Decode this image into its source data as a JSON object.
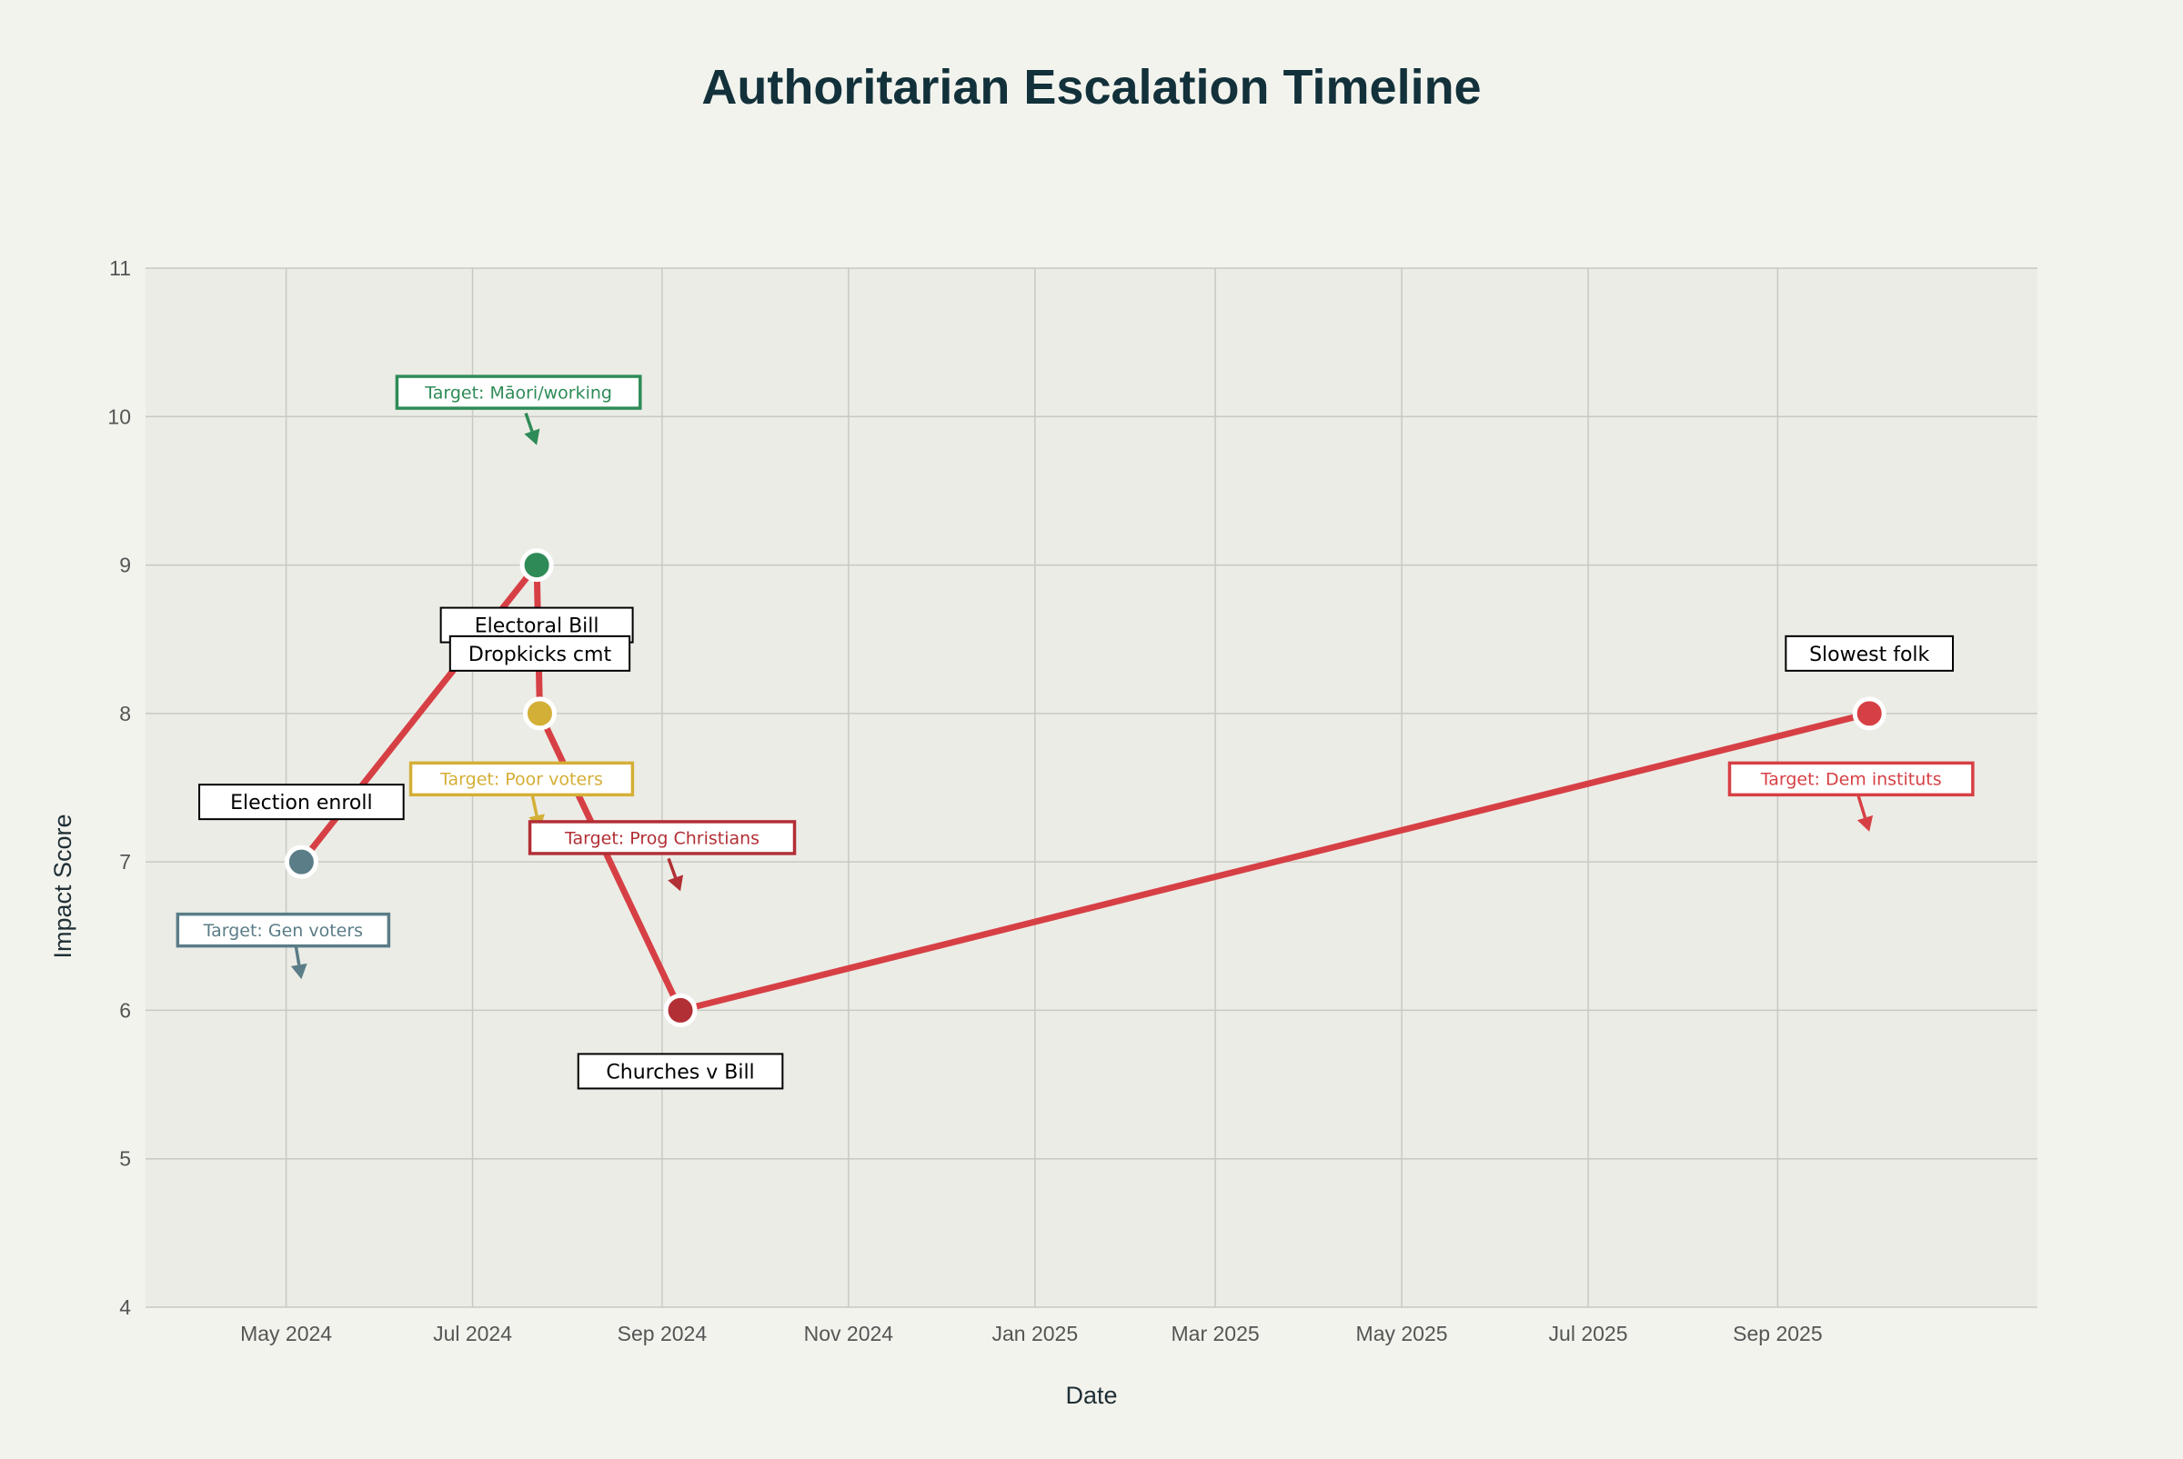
{
  "chart_data": {
    "type": "line",
    "title": "Authoritarian Escalation Timeline",
    "xlabel": "Date",
    "ylabel": "Impact Score",
    "xlim": [
      "2024-03-16",
      "2025-11-25"
    ],
    "ylim": [
      4,
      11
    ],
    "grid": true,
    "x_ticks": [
      {
        "date": "2024-05-01",
        "label": "May 2024"
      },
      {
        "date": "2024-07-01",
        "label": "Jul 2024"
      },
      {
        "date": "2024-09-01",
        "label": "Sep 2024"
      },
      {
        "date": "2024-11-01",
        "label": "Nov 2024"
      },
      {
        "date": "2025-01-01",
        "label": "Jan 2025"
      },
      {
        "date": "2025-03-01",
        "label": "Mar 2025"
      },
      {
        "date": "2025-05-01",
        "label": "May 2025"
      },
      {
        "date": "2025-07-01",
        "label": "Jul 2025"
      },
      {
        "date": "2025-09-01",
        "label": "Sep 2025"
      }
    ],
    "y_ticks": [
      4,
      5,
      6,
      7,
      8,
      9,
      10,
      11
    ],
    "line_color": "#d64045",
    "points": [
      {
        "date": "2024-05-06",
        "score": 7,
        "label": "Election enroll",
        "target": "Target: Gen voters",
        "color": "#5a7d87"
      },
      {
        "date": "2024-07-22",
        "score": 9,
        "label": "Electoral Bill",
        "target": "Target: Māori/working",
        "color": "#2e8b57"
      },
      {
        "date": "2024-07-23",
        "score": 8,
        "label": "Dropkicks cmt",
        "target": "Target: Poor voters",
        "color": "#d4af37"
      },
      {
        "date": "2024-09-07",
        "score": 6,
        "label": "Churches v Bill",
        "target": "Target: Prog Christians",
        "color": "#b22f35"
      },
      {
        "date": "2025-10-01",
        "score": 8,
        "label": "Slowest folk",
        "target": "Target: Dem instituts",
        "color": "#d64045"
      }
    ]
  }
}
